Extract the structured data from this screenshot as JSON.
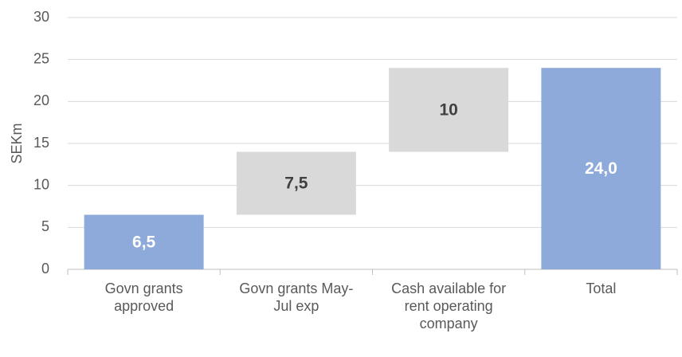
{
  "chart_data": {
    "type": "waterfall",
    "y_label": "SEKm",
    "categories": [
      [
        "Govn grants",
        "approved"
      ],
      [
        "Govn grants May-",
        "Jul exp"
      ],
      [
        "Cash available for",
        "rent operating",
        "company"
      ],
      [
        "Total"
      ]
    ],
    "values": [
      6.5,
      7.5,
      10,
      24
    ],
    "value_labels": [
      "6,5",
      "7,5",
      "10",
      "24,0"
    ],
    "is_total": [
      false,
      false,
      false,
      true
    ],
    "colors": [
      "#8eaadb",
      "#d9d9d9",
      "#d9d9d9",
      "#8eaadb"
    ],
    "label_colors": [
      "#ffffff",
      "#404040",
      "#404040",
      "#ffffff"
    ],
    "ylim": [
      0,
      30
    ],
    "yticks": [
      0,
      5,
      10,
      15,
      20,
      25,
      30
    ],
    "grid": true
  }
}
